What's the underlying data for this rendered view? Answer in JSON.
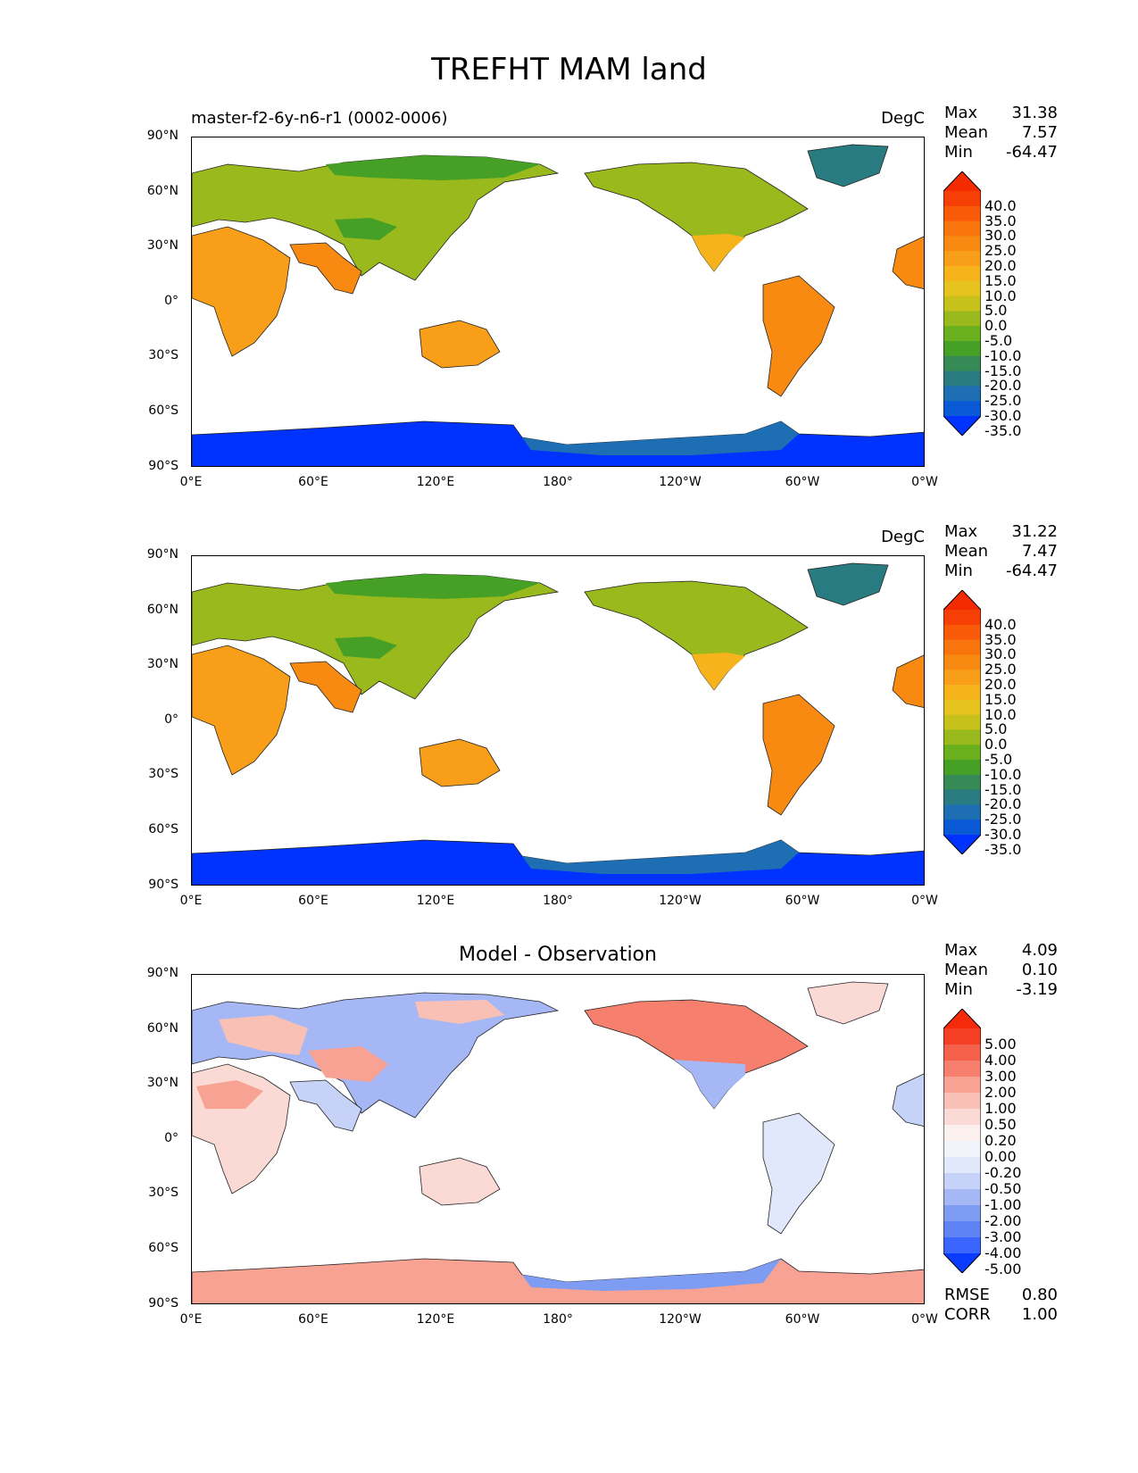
{
  "figure": {
    "title": "TREFHT MAM land"
  },
  "axes": {
    "lat_ticks": [
      "90°N",
      "60°N",
      "30°N",
      "0°",
      "30°S",
      "60°S",
      "90°S"
    ],
    "lon_ticks": [
      "0°E",
      "60°E",
      "120°E",
      "180°",
      "120°W",
      "60°W",
      "0°W"
    ]
  },
  "panels": [
    {
      "id": "test",
      "run_label": "master-f2-6y-n6-r1 (0002-0006)",
      "units": "DegC",
      "stats": {
        "names": [
          "Max",
          "Mean",
          "Min"
        ],
        "values": [
          "31.38",
          "7.57",
          "-64.47"
        ]
      },
      "colorbar": {
        "labels": [
          "40.0",
          "35.0",
          "30.0",
          "25.0",
          "20.0",
          "15.0",
          "10.0",
          "5.0",
          "0.0",
          "-5.0",
          "-10.0",
          "-15.0",
          "-20.0",
          "-25.0",
          "-30.0",
          "-35.0"
        ],
        "colors": [
          "#0033ff",
          "#0a5ad8",
          "#1e6eb4",
          "#287b80",
          "#358a55",
          "#45a025",
          "#6aaf1e",
          "#9ab91c",
          "#c6c21b",
          "#e6c31e",
          "#f6b31c",
          "#f89e18",
          "#f88a12",
          "#f8740c",
          "#f85a08",
          "#f63f04",
          "#f42a00"
        ]
      }
    },
    {
      "id": "reference",
      "run_label": "",
      "units": "DegC",
      "stats": {
        "names": [
          "Max",
          "Mean",
          "Min"
        ],
        "values": [
          "31.22",
          "7.47",
          "-64.47"
        ]
      },
      "colorbar": {
        "labels": [
          "40.0",
          "35.0",
          "30.0",
          "25.0",
          "20.0",
          "15.0",
          "10.0",
          "5.0",
          "0.0",
          "-5.0",
          "-10.0",
          "-15.0",
          "-20.0",
          "-25.0",
          "-30.0",
          "-35.0"
        ],
        "colors": [
          "#0033ff",
          "#0a5ad8",
          "#1e6eb4",
          "#287b80",
          "#358a55",
          "#45a025",
          "#6aaf1e",
          "#9ab91c",
          "#c6c21b",
          "#e6c31e",
          "#f6b31c",
          "#f89e18",
          "#f88a12",
          "#f8740c",
          "#f85a08",
          "#f63f04",
          "#f42a00"
        ]
      }
    },
    {
      "id": "diff",
      "title": "Model - Observation",
      "stats": {
        "names": [
          "Max",
          "Mean",
          "Min"
        ],
        "values": [
          "4.09",
          "0.10",
          "-3.19"
        ]
      },
      "colorbar": {
        "labels": [
          "5.00",
          "4.00",
          "3.00",
          "2.00",
          "1.00",
          "0.50",
          "0.20",
          "0.00",
          "-0.20",
          "-0.50",
          "-1.00",
          "-2.00",
          "-3.00",
          "-4.00",
          "-5.00"
        ],
        "colors": [
          "#0a3cff",
          "#3a66ff",
          "#5f83f5",
          "#7f9cf3",
          "#a5b8f5",
          "#c6d2f8",
          "#e2e8fb",
          "#f2f4fc",
          "#fcf0ee",
          "#fbdad5",
          "#f9c0b6",
          "#f7a293",
          "#f6806d",
          "#f5604a",
          "#f43f25",
          "#f42a0a"
        ]
      },
      "error_stats": {
        "names": [
          "RMSE",
          "CORR"
        ],
        "values": [
          "0.80",
          "1.00"
        ]
      }
    }
  ]
}
